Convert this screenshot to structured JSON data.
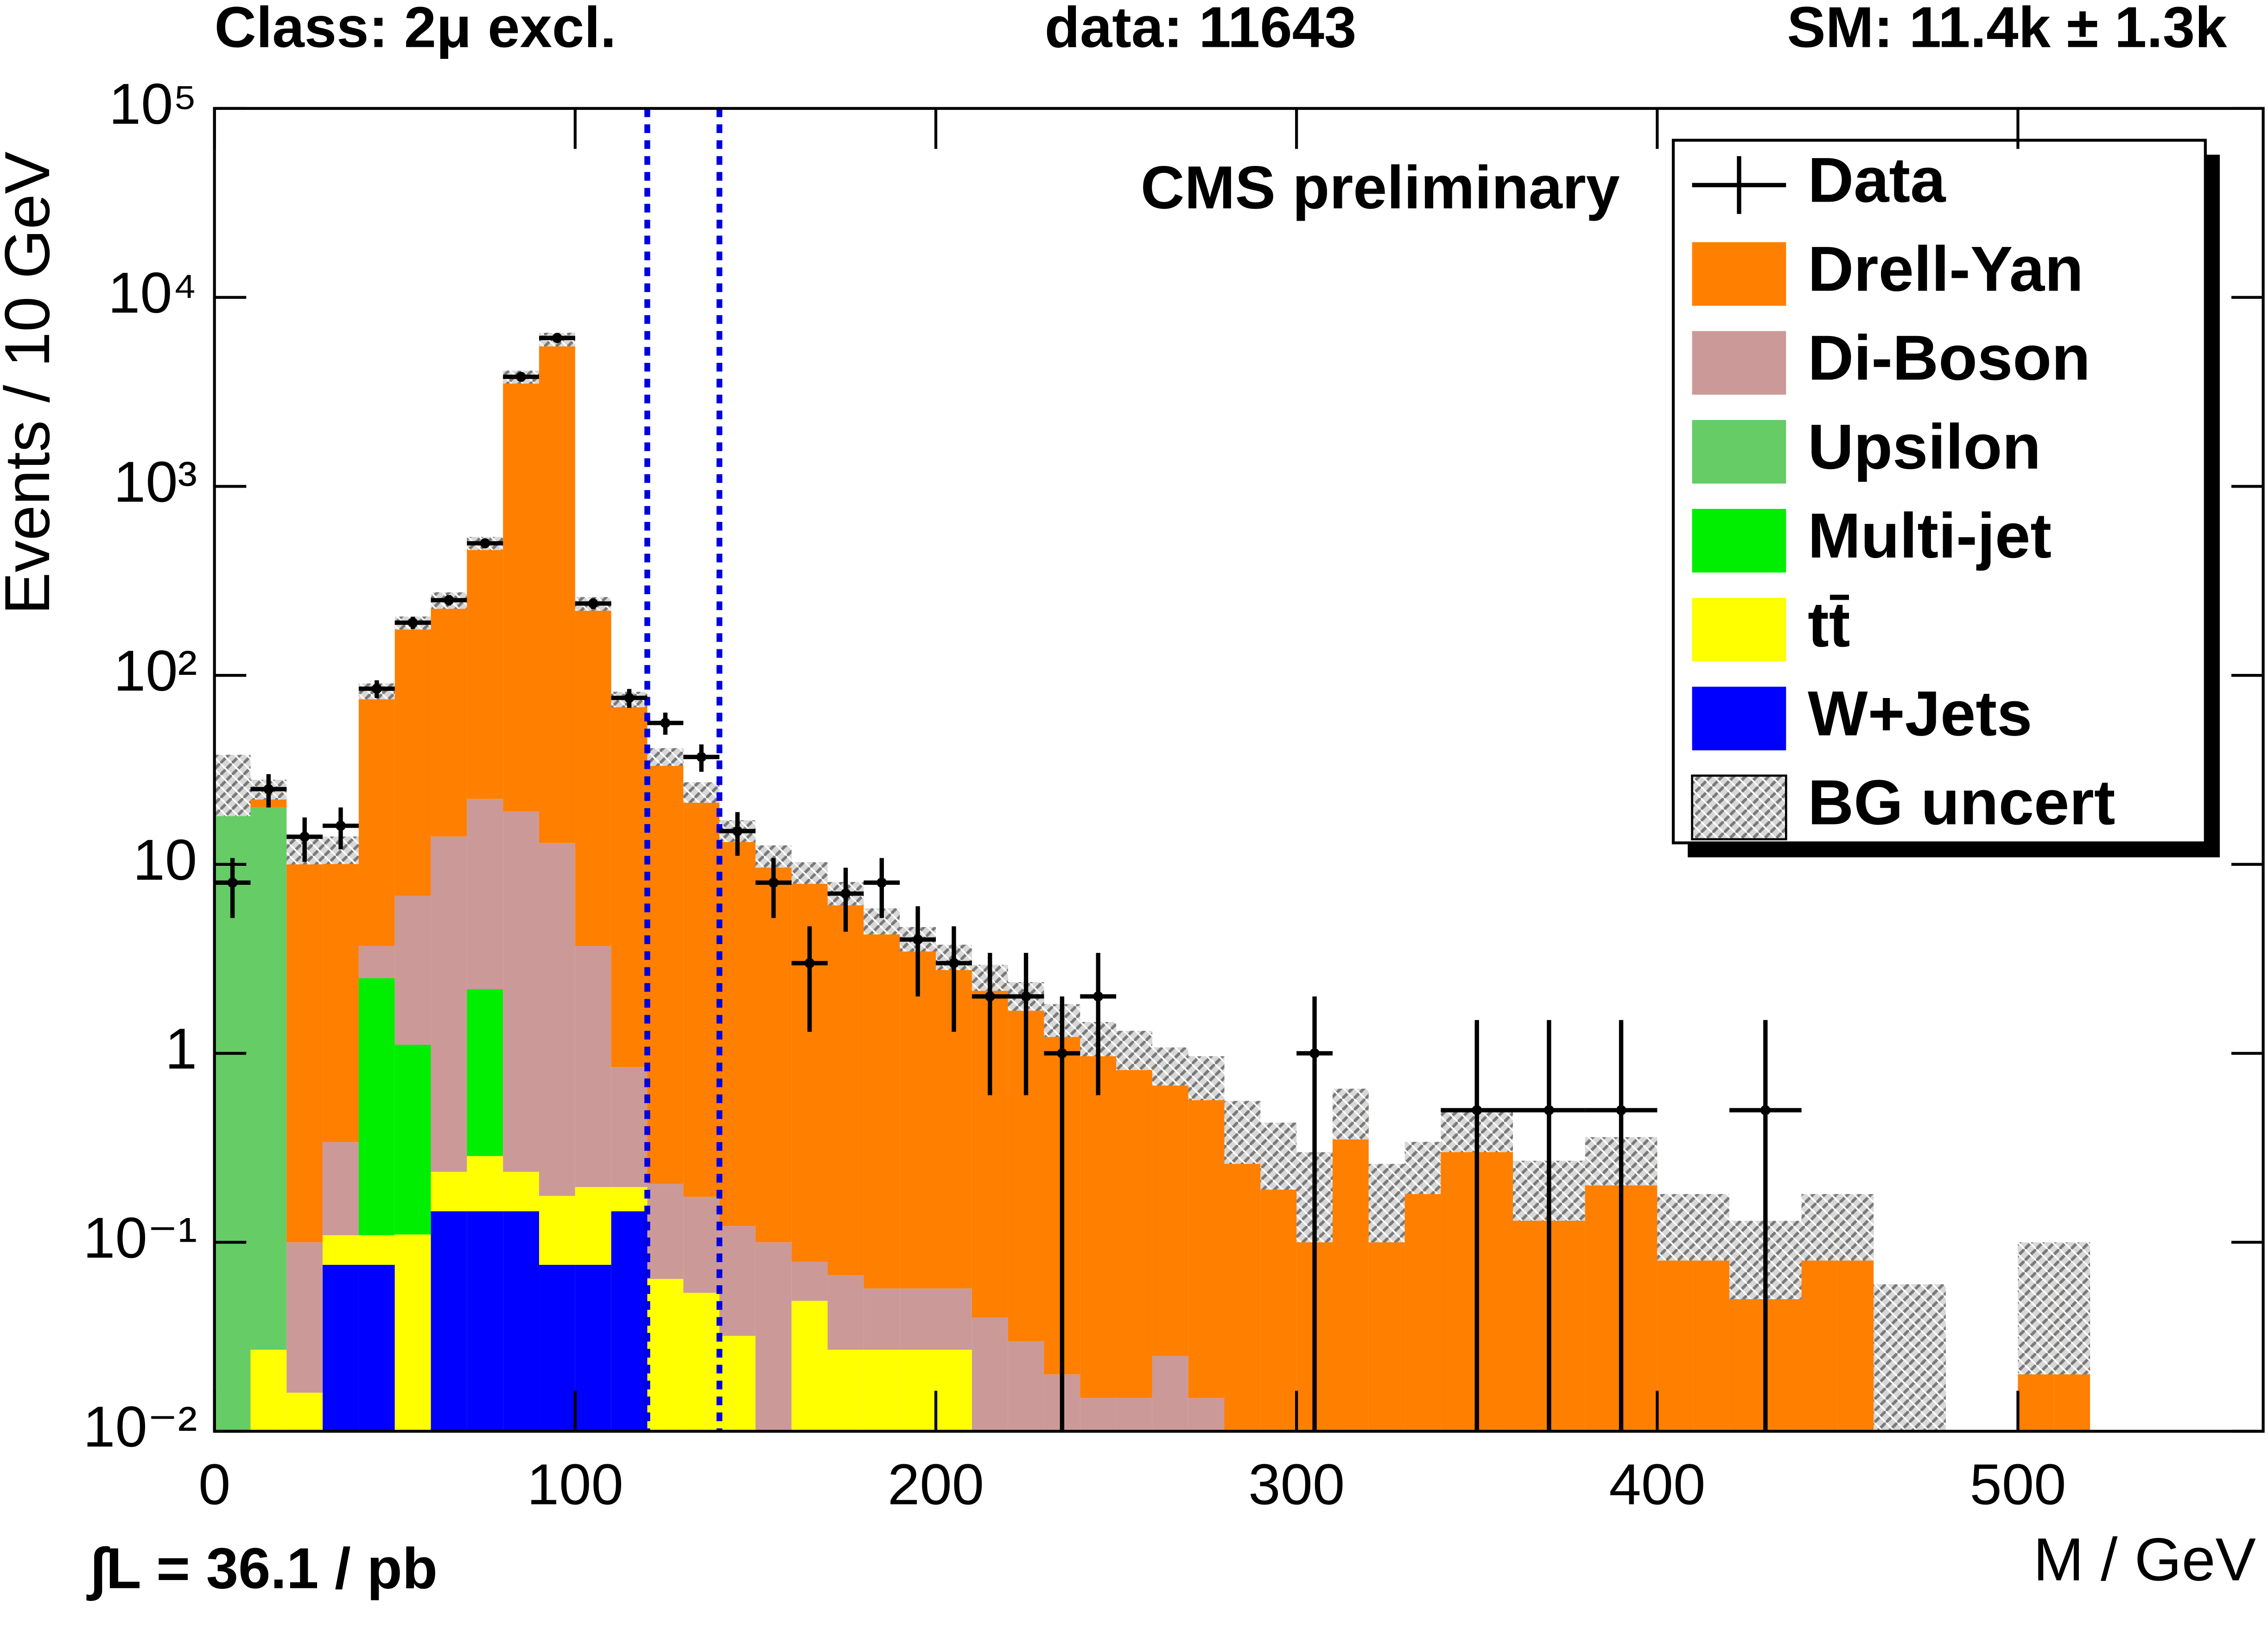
{
  "chart_data": {
    "type": "stacked-histogram",
    "title": "Class: 2μ excl.",
    "annotations": [
      "data: 11643",
      "SM: 11.4k ± 1.3k",
      "CMS preliminary",
      "∫L = 36.1 / pb"
    ],
    "x_label": "M / GeV",
    "y_label": "Events / 10 GeV",
    "log_y": true,
    "xlim": [
      0,
      568
    ],
    "ylim": [
      0.01,
      100000
    ],
    "xticks": [
      0,
      100,
      200,
      300,
      400,
      500
    ],
    "yticks": [
      {
        "value": 0.01,
        "label": "10⁻²"
      },
      {
        "value": 0.1,
        "label": "10⁻¹"
      },
      1,
      10,
      {
        "value": 100,
        "label": "10²"
      },
      {
        "value": 1000,
        "label": "10³"
      },
      {
        "value": 10000,
        "label": "10⁴"
      },
      {
        "value": 100000,
        "label": "10⁵"
      }
    ],
    "vlines": [
      120,
      140
    ],
    "vline_color": "#0000dd",
    "legend": "upper right",
    "bins": [
      0,
      10,
      20,
      30,
      40,
      50,
      60,
      70,
      80,
      90,
      100,
      110,
      120,
      130,
      140,
      150,
      160,
      170,
      180,
      190,
      200,
      210,
      220,
      230,
      240,
      250,
      260,
      270,
      280,
      290,
      300,
      310,
      320,
      330,
      340,
      350,
      360,
      370,
      380,
      390,
      400,
      410,
      420,
      430,
      440,
      450,
      460,
      470,
      480,
      490,
      500,
      510,
      520
    ],
    "series": [
      {
        "name": "Drell-Yan",
        "color": "#ff7f00",
        "values": [
          null,
          5,
          11.9,
          11.7,
          79,
          183,
          236,
          478,
          3780,
          5990,
          236,
          74,
          37,
          24,
          15,
          11,
          9,
          7,
          5,
          4,
          3.2,
          2.5,
          2,
          1.5,
          1.2,
          1.05,
          0.85,
          0.75,
          0.4,
          0.31,
          0.2,
          0.5,
          0.18,
          0.26,
          0.4,
          0.4,
          0.2,
          0.2,
          0.28,
          0.28,
          0.13,
          0.13,
          0.09,
          0.09,
          0.13,
          0.13,
          0.03,
          0.03,
          null,
          null,
          0.06,
          0.06
        ]
      },
      {
        "name": "Di-Boson",
        "color": "#cc9999",
        "values": [
          null,
          null,
          0.084,
          0.23,
          1.2,
          5.7,
          13.8,
          20,
          18.8,
          12.8,
          3.5,
          0.65,
          0.14,
          0.12,
          0.09,
          0.1,
          0.03,
          0.04,
          0.03,
          0.03,
          0.03,
          0.04,
          0.03,
          0.02,
          0.015,
          0.015,
          0.025,
          0.015,
          0.01,
          null,
          null,
          null,
          null,
          null,
          null,
          null,
          null,
          null,
          null,
          null,
          null,
          null,
          null,
          null,
          null,
          null,
          null,
          null,
          null,
          null,
          null,
          null
        ]
      },
      {
        "name": "Upsilon",
        "color": "#66cc66",
        "values": [
          28,
          20,
          null,
          null,
          null,
          null,
          null,
          null,
          null,
          null,
          null,
          null,
          null,
          null,
          null,
          null,
          null,
          null,
          null,
          null,
          null,
          null,
          null,
          null,
          null,
          null,
          null,
          null,
          null,
          null,
          null,
          null,
          null,
          null,
          null,
          null,
          null,
          null,
          null,
          null,
          null,
          null,
          null,
          null,
          null,
          null,
          null,
          null,
          null,
          null,
          null,
          null
        ]
      },
      {
        "name": "Multi-jet",
        "color": "#00ee00",
        "values": [
          null,
          null,
          null,
          null,
          2.39,
          1.0,
          null,
          1.9,
          null,
          null,
          null,
          null,
          null,
          null,
          null,
          null,
          null,
          null,
          null,
          null,
          null,
          null,
          null,
          null,
          null,
          null,
          null,
          null,
          null,
          null,
          null,
          null,
          null,
          null,
          null,
          null,
          null,
          null,
          null,
          null,
          null,
          null,
          null,
          null,
          null,
          null,
          null,
          null,
          null,
          null,
          null,
          null
        ]
      },
      {
        "name": "tt̄",
        "color": "#ffff00",
        "values": [
          null,
          0.027,
          0.016,
          0.033,
          0.033,
          0.11,
          0.09,
          0.14,
          0.09,
          0.1,
          0.12,
          0.05,
          0.064,
          0.054,
          0.032,
          null,
          0.049,
          0.027,
          0.027,
          0.027,
          0.027,
          null,
          null,
          null,
          null,
          null,
          null,
          null,
          null,
          null,
          null,
          null,
          null,
          null,
          null,
          null,
          null,
          null,
          null,
          null,
          null,
          null,
          null,
          null,
          null,
          null,
          null,
          null,
          null,
          null,
          null,
          null
        ]
      },
      {
        "name": "W+Jets",
        "color": "#0000ff",
        "values": [
          null,
          null,
          null,
          0.076,
          0.076,
          null,
          0.146,
          0.146,
          0.146,
          0.076,
          0.076,
          0.146,
          null,
          null,
          null,
          null,
          null,
          null,
          null,
          null,
          null,
          null,
          null,
          null,
          null,
          null,
          null,
          null,
          null,
          null,
          null,
          null,
          null,
          null,
          null,
          null,
          null,
          null,
          null,
          null,
          null,
          null,
          null,
          null,
          null,
          null,
          null,
          null,
          null,
          null,
          null,
          null
        ]
      }
    ],
    "uncertainty": {
      "name": "BG uncert",
      "values": [
        10,
        3,
        2,
        2,
        8,
        15,
        25,
        40,
        300,
        500,
        20,
        7,
        4,
        3,
        2,
        1.5,
        1.2,
        1,
        0.8,
        0.6,
        0.5,
        0.4,
        0.35,
        0.3,
        0.25,
        0.25,
        0.2,
        0.2,
        0.15,
        0.12,
        0.1,
        0.15,
        0.08,
        0.08,
        0.1,
        0.1,
        0.07,
        0.07,
        0.08,
        0.08,
        0.05,
        0.05,
        0.04,
        0.04,
        0.05,
        0.05,
        0.03,
        0.03,
        null,
        null,
        0.04,
        0.04
      ]
    },
    "data": {
      "name": "Data",
      "color": "#000000",
      "x": [
        5,
        15,
        25,
        35,
        45,
        55,
        65,
        75,
        85,
        95,
        105,
        115,
        125,
        135,
        145,
        155,
        165,
        175,
        185,
        195,
        205,
        215,
        225,
        235,
        245,
        305,
        350,
        370,
        390,
        430
      ],
      "values": [
        8,
        25,
        14,
        16,
        85,
        190,
        250,
        500,
        3800,
        6100,
        240,
        76,
        56,
        37,
        15,
        8,
        3,
        7,
        8,
        4,
        3,
        2,
        2,
        1,
        2,
        1,
        0.5,
        0.5,
        0.5,
        0.5
      ],
      "yerr": [
        2.8,
        5,
        3.7,
        4,
        9.2,
        13.8,
        15.8,
        22.4,
        62,
        78,
        15.5,
        8.7,
        7.5,
        6.1,
        3.9,
        2.8,
        1.7,
        2.6,
        2.8,
        2,
        1.7,
        1.4,
        1.4,
        1,
        1.4,
        1,
        1,
        1,
        1,
        1
      ],
      "xerr": [
        5,
        5,
        5,
        5,
        5,
        5,
        5,
        5,
        5,
        5,
        5,
        5,
        5,
        5,
        5,
        5,
        5,
        5,
        5,
        5,
        5,
        5,
        5,
        5,
        5,
        5,
        10,
        10,
        10,
        10
      ]
    }
  }
}
